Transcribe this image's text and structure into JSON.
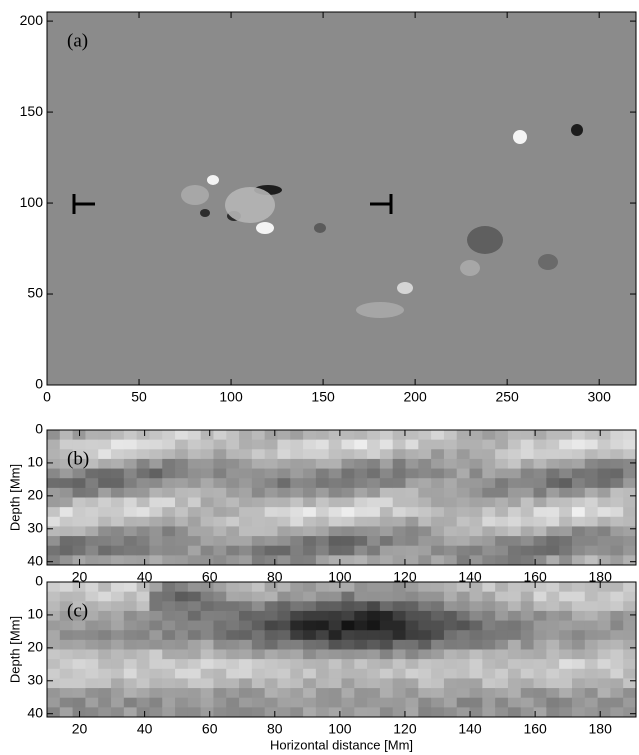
{
  "chart_data": [
    {
      "type": "image",
      "annotation": "(a)",
      "xlim": [
        0,
        320
      ],
      "ylim": [
        0,
        205
      ],
      "xticks": [
        0,
        50,
        100,
        150,
        200,
        250,
        300
      ],
      "yticks": [
        0,
        50,
        100,
        150,
        200
      ]
    },
    {
      "type": "image",
      "annotation": "(b)",
      "ylabel": "Depth [Mm]",
      "xlim": [
        10,
        191
      ],
      "ylim": [
        0,
        41
      ],
      "y_reversed": true,
      "xticks": [
        20,
        40,
        60,
        80,
        100,
        120,
        140,
        160,
        180
      ],
      "yticks": [
        0,
        10,
        20,
        30,
        40
      ]
    },
    {
      "type": "image",
      "annotation": "(c)",
      "ylabel": "Depth [Mm]",
      "xlabel": "Horizontal distance [Mm]",
      "xlim": [
        10,
        191
      ],
      "ylim": [
        0,
        41
      ],
      "y_reversed": true,
      "xticks": [
        20,
        40,
        60,
        80,
        100,
        120,
        140,
        160,
        180
      ],
      "yticks": [
        0,
        10,
        20,
        30,
        40
      ]
    }
  ]
}
